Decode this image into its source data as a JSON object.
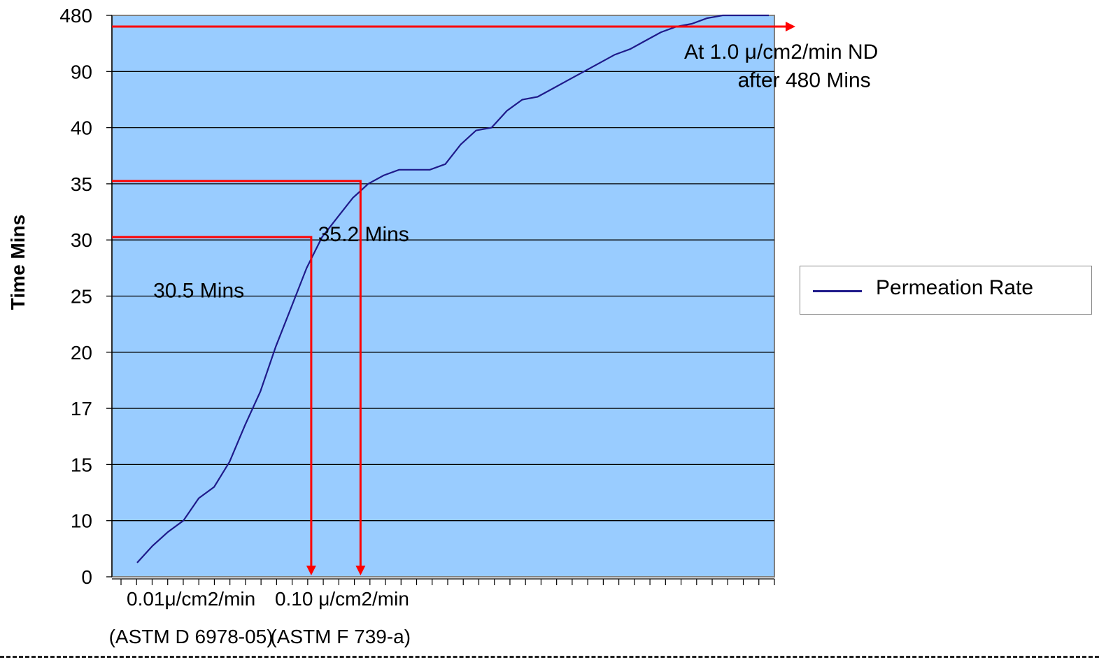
{
  "chart_data": {
    "type": "line",
    "ylabel": "Time Mins",
    "y_tick_labels": [
      "0",
      "10",
      "15",
      "17",
      "20",
      "25",
      "30",
      "35",
      "40",
      "90",
      "480"
    ],
    "x_tick_count": 42,
    "x_labels": [
      {
        "text": "0.01μ/cm2/min",
        "tick_index": 4.5
      },
      {
        "text": "0.10 μ/cm2/min",
        "tick_index": 14.3
      },
      {
        "text": "(ASTM D 6978-05)",
        "tick_index": 4.5
      },
      {
        "text": "(ASTM F 739-a)",
        "tick_index": 14.2
      }
    ],
    "series": [
      {
        "name": "Permeation Rate",
        "color": "#1f1a8a",
        "points": [
          [
            1,
            0.25
          ],
          [
            2,
            0.55
          ],
          [
            3,
            0.8
          ],
          [
            4,
            1.0
          ],
          [
            5,
            1.4
          ],
          [
            6,
            1.6
          ],
          [
            7,
            2.05
          ],
          [
            8,
            2.7
          ],
          [
            9,
            3.3
          ],
          [
            10,
            4.1
          ],
          [
            11,
            4.8
          ],
          [
            12,
            5.5
          ],
          [
            13,
            6.05
          ],
          [
            14,
            6.4
          ],
          [
            15,
            6.75
          ],
          [
            16,
            7.0
          ],
          [
            17,
            7.15
          ],
          [
            18,
            7.25
          ],
          [
            19,
            7.25
          ],
          [
            20,
            7.25
          ],
          [
            21,
            7.35
          ],
          [
            22,
            7.7
          ],
          [
            23,
            7.95
          ],
          [
            24,
            8.0
          ],
          [
            25,
            8.3
          ],
          [
            26,
            8.5
          ],
          [
            27,
            8.55
          ],
          [
            28,
            8.7
          ],
          [
            29,
            8.85
          ],
          [
            30,
            9.0
          ],
          [
            31,
            9.15
          ],
          [
            32,
            9.3
          ],
          [
            33,
            9.4
          ],
          [
            34,
            9.55
          ],
          [
            35,
            9.7
          ],
          [
            36,
            9.8
          ],
          [
            37,
            9.85
          ],
          [
            38,
            9.95
          ],
          [
            39,
            10.0
          ],
          [
            40,
            10.0
          ],
          [
            41,
            10.0
          ],
          [
            42,
            10.0
          ]
        ]
      }
    ],
    "annotations": [
      {
        "text": "30.5 Mins",
        "tick_index": 5.0,
        "level": 5.1
      },
      {
        "text": "35.2 Mins",
        "tick_index": 15.7,
        "level": 6.1
      },
      {
        "text": "At 1.0 μ/cm2/min ND",
        "tick_index": 42.8,
        "level": 9.35
      },
      {
        "text": "after 480 Mins",
        "tick_index": 44.3,
        "level": 8.85
      }
    ],
    "markers": [
      {
        "level": 6.05,
        "tick_index": 12.3,
        "arrow": "down"
      },
      {
        "level": 7.05,
        "tick_index": 15.5,
        "arrow": "down"
      },
      {
        "level": 9.8,
        "tick_index": 42.0,
        "arrow": "right"
      }
    ],
    "grid": true,
    "colors": {
      "plot_bg": "#99ccff",
      "line": "#1f1a8a",
      "marker": "#ff0000",
      "grid": "#000000"
    },
    "legend_position": "right"
  }
}
